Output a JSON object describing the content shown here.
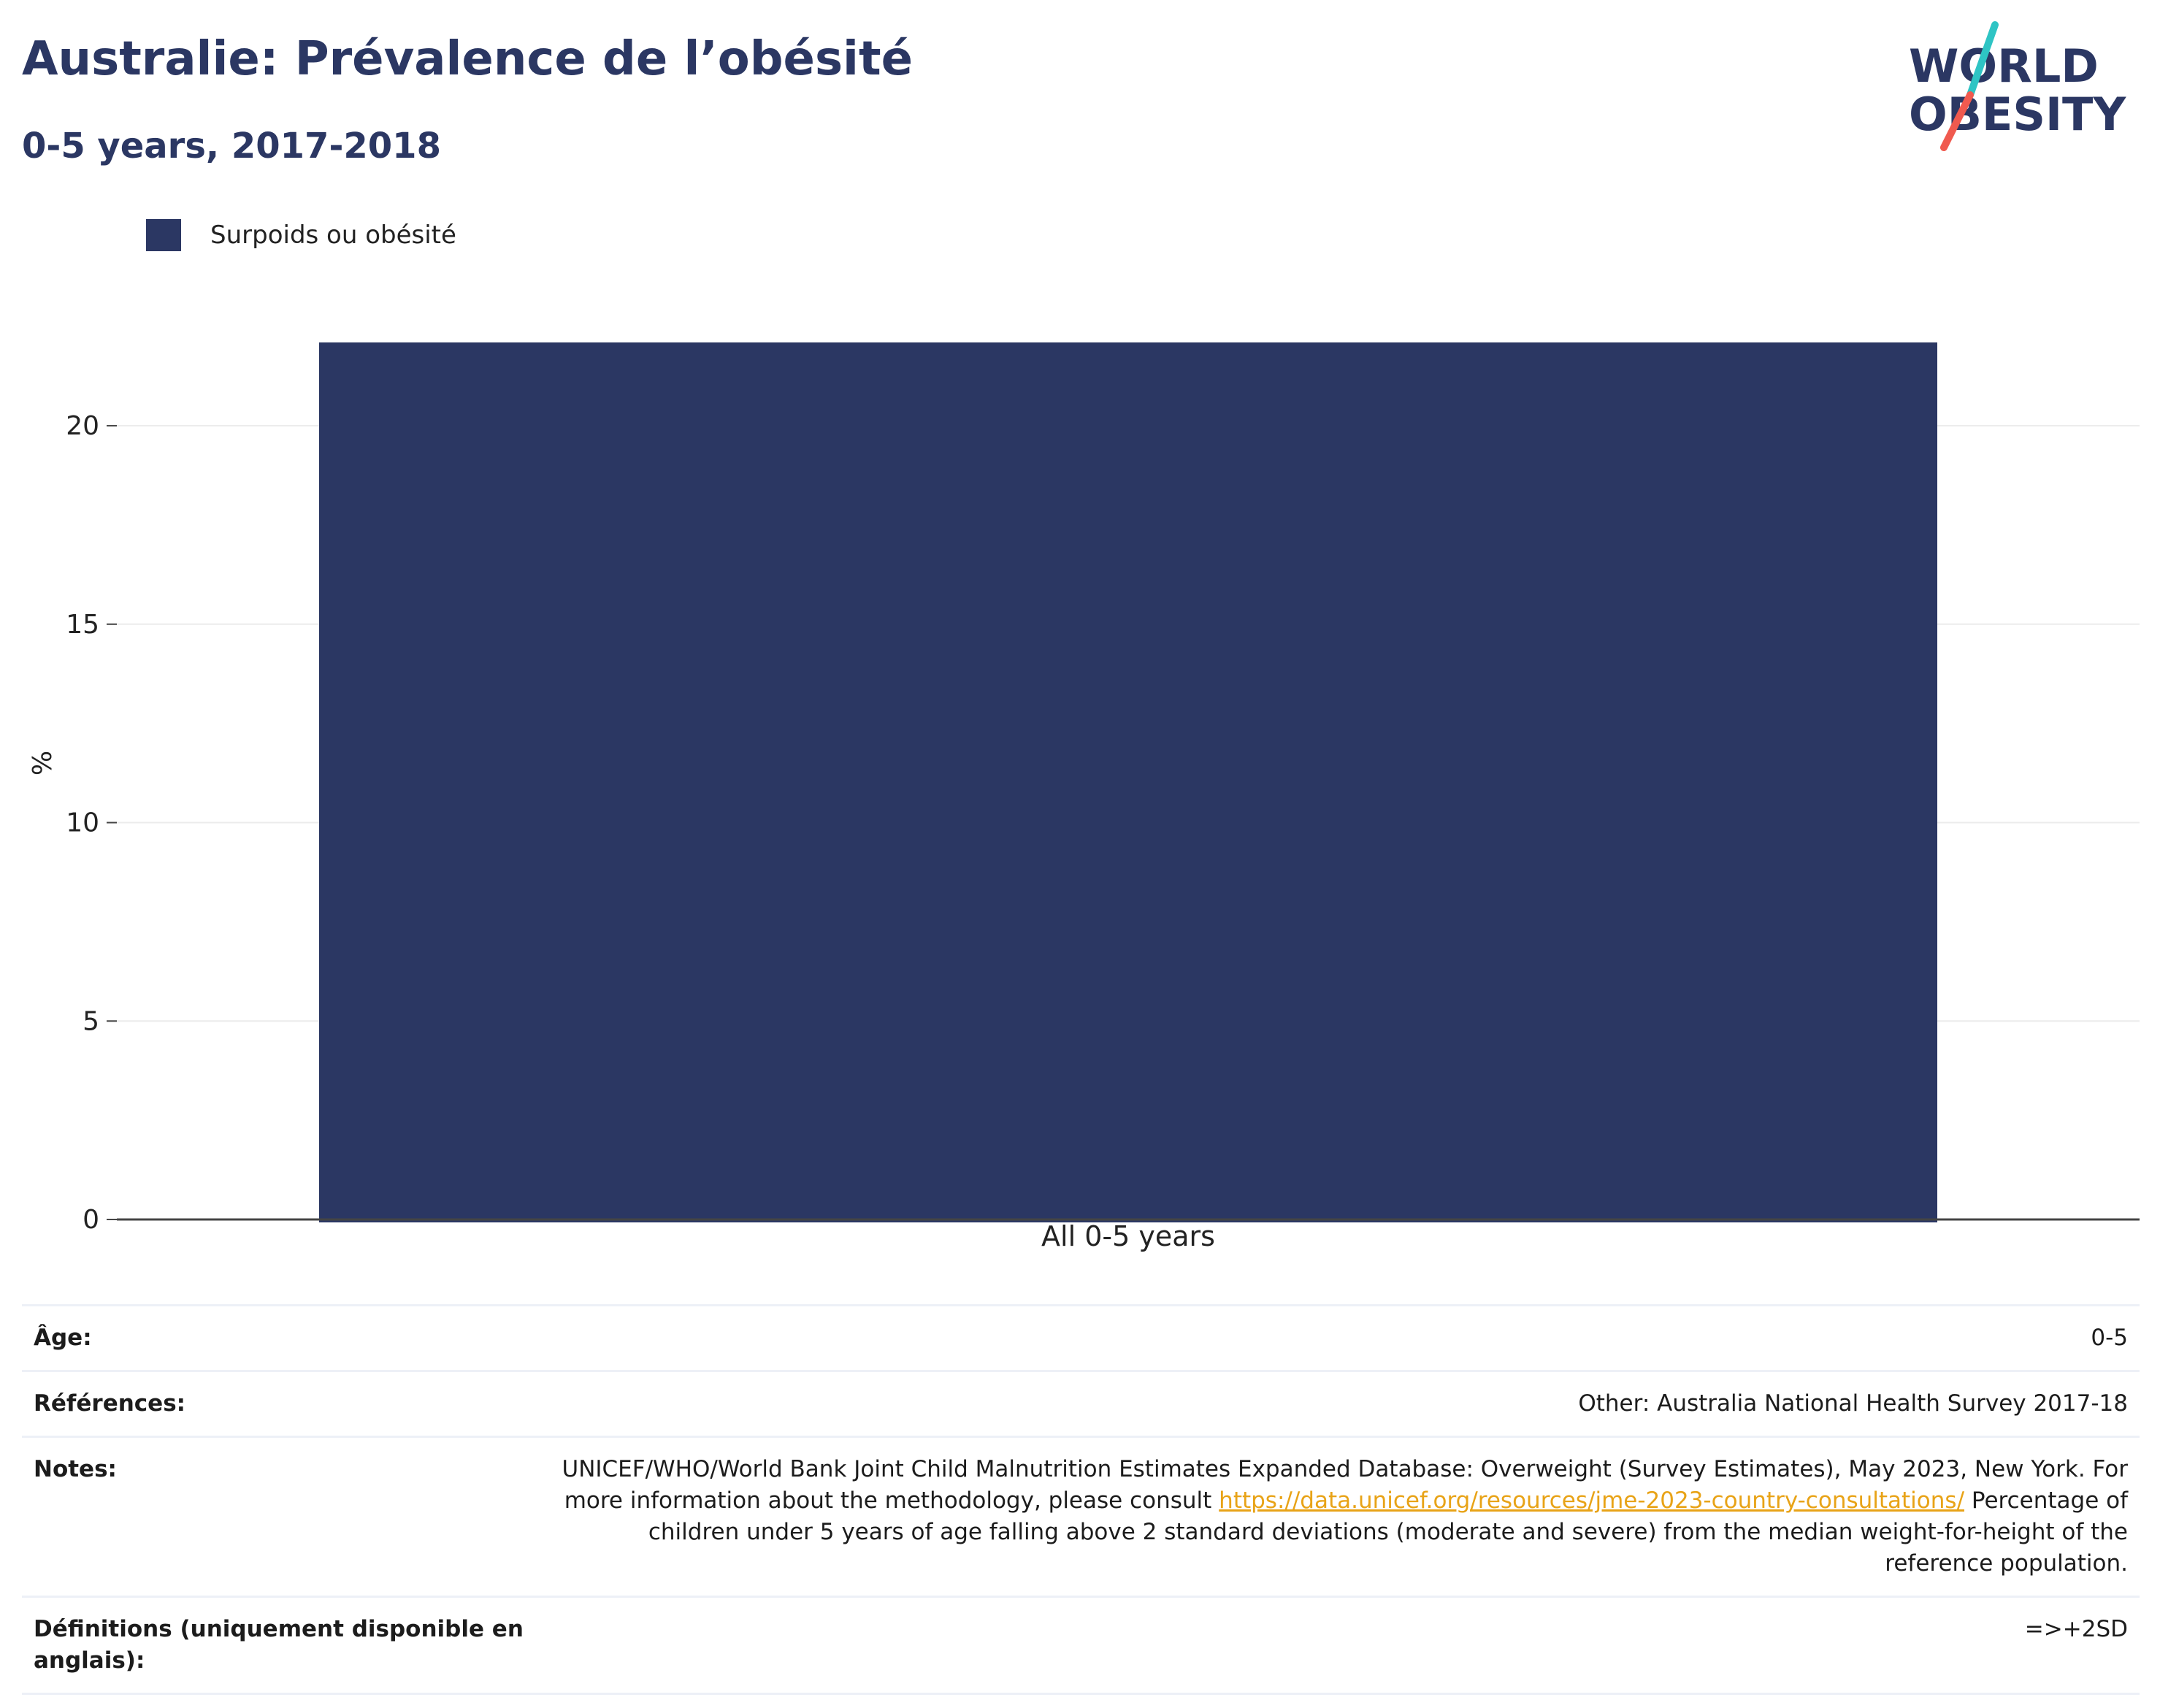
{
  "header": {
    "title": "Australie: Prévalence de l’obésité",
    "subtitle": "0-5 years, 2017-2018"
  },
  "logo": {
    "line1": "WORLD",
    "line2": "OBESITY",
    "colors": {
      "text": "#2b3763",
      "slash_top": "#2ec4c4",
      "slash_bottom": "#f05a4f"
    }
  },
  "chart_data": {
    "type": "bar",
    "categories": [
      "All 0-5 years"
    ],
    "series": [
      {
        "name": "Surpoids ou obésité",
        "values": [
          22.1
        ],
        "color": "#2b3763"
      }
    ],
    "ylabel": "%",
    "xlabel": "",
    "ylim": [
      0,
      23
    ],
    "yticks": [
      0,
      5,
      10,
      15,
      20
    ],
    "grid": true,
    "legend_position": "top-left"
  },
  "info": {
    "rows": [
      {
        "key": "Âge:",
        "value": "0-5"
      },
      {
        "key": "Références:",
        "value": "Other: Australia National Health Survey 2017-18"
      }
    ],
    "notes": {
      "key": "Notes:",
      "text_before": "UNICEF/WHO/World Bank Joint Child Malnutrition Estimates Expanded Database: Overweight (Survey Estimates), May 2023, New York. For more information about the methodology, please consult ",
      "link": "https://data.unicef.org/resources/jme-2023-country-consultations/",
      "text_after": " Percentage of children under 5 years of age falling above 2 standard deviations (moderate and severe) from the median weight-for-height of the reference population."
    },
    "definitions": {
      "key": "Définitions (uniquement disponible en anglais):",
      "value": "=>+2SD"
    }
  }
}
